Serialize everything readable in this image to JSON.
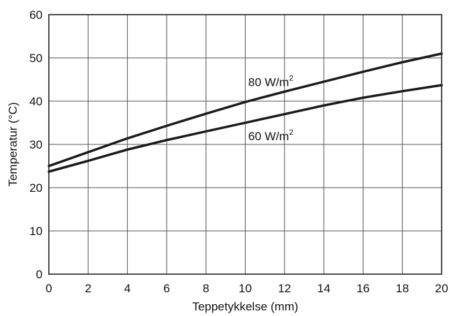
{
  "chart_data": {
    "type": "line",
    "title": "",
    "xlabel": "Teppetykkelse (mm)",
    "ylabel": "Temperatur (°C)",
    "xlim": [
      0,
      20
    ],
    "ylim": [
      0,
      60
    ],
    "xticks": [
      0,
      2,
      4,
      6,
      8,
      10,
      12,
      14,
      16,
      18,
      20
    ],
    "yticks": [
      0,
      10,
      20,
      30,
      40,
      50,
      60
    ],
    "grid": true,
    "legend": "none",
    "series": [
      {
        "name": "80 W/m²",
        "label_base": "80 W/m",
        "label_sup": "2",
        "label_at": {
          "x": 11.3,
          "y": 43.5
        },
        "color": "#1a1a1a",
        "x": [
          0,
          2,
          4,
          6,
          8,
          10,
          12,
          14,
          16,
          18,
          20
        ],
        "y": [
          25,
          28.2,
          31.4,
          34.3,
          37.1,
          39.8,
          42.2,
          44.5,
          46.8,
          49.0,
          51.0
        ]
      },
      {
        "name": "60 W/m²",
        "label_base": "60 W/m",
        "label_sup": "2",
        "label_at": {
          "x": 11.3,
          "y": 31.0
        },
        "color": "#1a1a1a",
        "x": [
          0,
          2,
          4,
          6,
          8,
          10,
          12,
          14,
          16,
          18,
          20
        ],
        "y": [
          23.7,
          26.2,
          28.8,
          31.0,
          33.0,
          35.0,
          37.0,
          39.0,
          40.8,
          42.3,
          43.7
        ]
      }
    ]
  }
}
